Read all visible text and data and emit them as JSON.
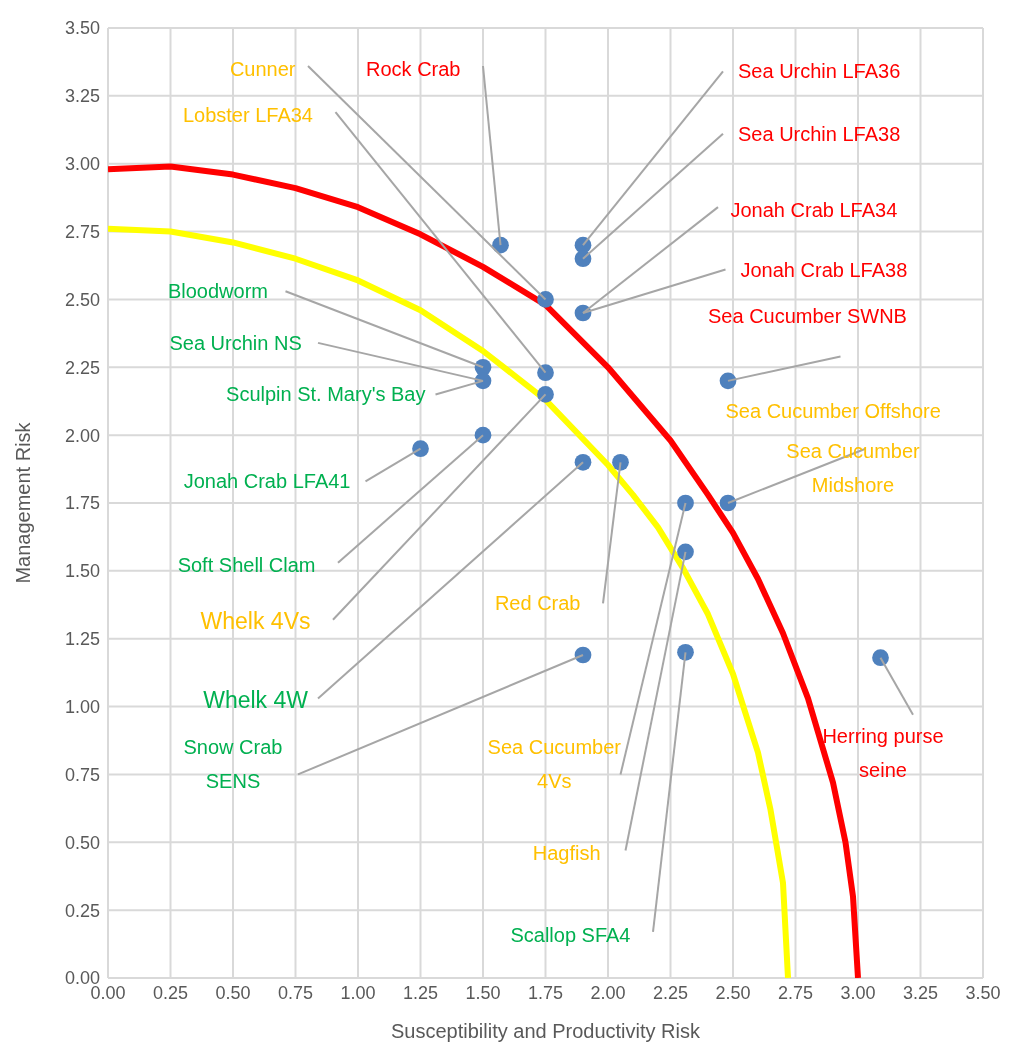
{
  "chart_data": {
    "type": "scatter",
    "xlabel": "Susceptibility and Productivity Risk",
    "ylabel": "Management  Risk",
    "xlim": [
      0,
      3.5
    ],
    "ylim": [
      0,
      3.5
    ],
    "grid": true,
    "xticks": [
      {
        "value": 0,
        "label": "0.00"
      },
      {
        "value": 0.25,
        "label": "0.25"
      },
      {
        "value": 0.5,
        "label": "0.50"
      },
      {
        "value": 0.75,
        "label": "0.75"
      },
      {
        "value": 1,
        "label": "1.00"
      },
      {
        "value": 1.25,
        "label": "1.25"
      },
      {
        "value": 1.5,
        "label": "1.50"
      },
      {
        "value": 1.75,
        "label": "1.75"
      },
      {
        "value": 2,
        "label": "2.00"
      },
      {
        "value": 2.25,
        "label": "2.25"
      },
      {
        "value": 2.5,
        "label": "2.50"
      },
      {
        "value": 2.75,
        "label": "2.75"
      },
      {
        "value": 3,
        "label": "3.00"
      },
      {
        "value": 3.25,
        "label": "3.25"
      },
      {
        "value": 3.5,
        "label": "3.50"
      }
    ],
    "yticks": [
      {
        "value": 0,
        "label": "0.00"
      },
      {
        "value": 0.25,
        "label": "0.25"
      },
      {
        "value": 0.5,
        "label": "0.50"
      },
      {
        "value": 0.75,
        "label": "0.75"
      },
      {
        "value": 1,
        "label": "1.00"
      },
      {
        "value": 1.25,
        "label": "1.25"
      },
      {
        "value": 1.5,
        "label": "1.50"
      },
      {
        "value": 1.75,
        "label": "1.75"
      },
      {
        "value": 2,
        "label": "2.00"
      },
      {
        "value": 2.25,
        "label": "2.25"
      },
      {
        "value": 2.5,
        "label": "2.50"
      },
      {
        "value": 2.75,
        "label": "2.75"
      },
      {
        "value": 3,
        "label": "3.00"
      },
      {
        "value": 3.25,
        "label": "3.25"
      },
      {
        "value": 3.5,
        "label": "3.50"
      }
    ],
    "series": [
      {
        "marker": "circle",
        "color": "#4f81bd",
        "x": [
          1.57,
          1.9,
          1.9,
          1.75,
          1.9,
          2.48,
          1.5,
          1.5,
          1.75,
          1.75,
          1.25,
          1.5,
          1.9,
          2.05,
          2.31,
          2.48,
          2.31,
          1.9,
          2.31,
          3.09
        ],
        "values": [
          2.7,
          2.7,
          2.65,
          2.5,
          2.45,
          2.2,
          2.25,
          2.2,
          2.23,
          2.15,
          1.95,
          2.0,
          1.9,
          1.9,
          1.75,
          1.75,
          1.57,
          1.19,
          1.2,
          1.18
        ]
      },
      {
        "type": "line",
        "marker": "none",
        "color": "#ff0000",
        "x": [
          0,
          0.25,
          0.5,
          0.75,
          1.0,
          1.25,
          1.5,
          1.75,
          2.0,
          2.25,
          2.4,
          2.5,
          2.6,
          2.7,
          2.8,
          2.9,
          2.95,
          2.98,
          3.0
        ],
        "values": [
          2.98,
          2.99,
          2.96,
          2.91,
          2.84,
          2.74,
          2.62,
          2.48,
          2.25,
          1.98,
          1.78,
          1.64,
          1.47,
          1.27,
          1.03,
          0.72,
          0.5,
          0.3,
          0
        ]
      },
      {
        "type": "line",
        "marker": "none",
        "color": "#ffff00",
        "x": [
          0,
          0.25,
          0.5,
          0.75,
          1.0,
          1.25,
          1.5,
          1.75,
          2.0,
          2.1,
          2.2,
          2.3,
          2.4,
          2.5,
          2.6,
          2.65,
          2.7,
          2.72
        ],
        "values": [
          2.76,
          2.75,
          2.71,
          2.65,
          2.57,
          2.46,
          2.31,
          2.13,
          1.89,
          1.78,
          1.66,
          1.51,
          1.34,
          1.12,
          0.83,
          0.62,
          0.35,
          0
        ]
      }
    ],
    "annotations": [
      {
        "text": "Rock Crab",
        "x": 1.57,
        "y": 2.7
      },
      {
        "text": "Sea Urchin LFA36",
        "x": 1.9,
        "y": 2.7
      },
      {
        "text": "Sea Urchin LFA38",
        "x": 1.9,
        "y": 2.65
      },
      {
        "text": "Cunner",
        "x": 1.75,
        "y": 2.5
      },
      {
        "text": "Jonah Crab LFA34",
        "x": 1.9,
        "y": 2.45
      },
      {
        "text": "Sea Cucumber SWNB",
        "x": 2.48,
        "y": 2.2
      },
      {
        "text": "Bloodworm",
        "x": 1.5,
        "y": 2.25
      },
      {
        "text": "Sea Urchin NS",
        "x": 1.5,
        "y": 2.2
      },
      {
        "text": "Lobster LFA34",
        "x": 1.75,
        "y": 2.23
      },
      {
        "text": "Whelk 4Vs",
        "x": 1.75,
        "y": 2.15
      },
      {
        "text": "Jonah Crab LFA41",
        "x": 1.25,
        "y": 1.95
      },
      {
        "text": "Soft Shell Clam",
        "x": 1.5,
        "y": 2.0
      },
      {
        "text": "Whelk 4W",
        "x": 1.9,
        "y": 1.9
      },
      {
        "text": "Red Crab",
        "x": 2.05,
        "y": 1.9
      },
      {
        "text": "Sea Cucumber 4Vs",
        "x": 2.31,
        "y": 1.75
      },
      {
        "text": "Sea Cucumber Midshore",
        "x": 2.48,
        "y": 1.75
      },
      {
        "text": "Hagfish",
        "x": 2.31,
        "y": 1.57
      },
      {
        "text": "Snow Crab SENS",
        "x": 1.9,
        "y": 1.19
      },
      {
        "text": "Scallop SFA4",
        "x": 2.31,
        "y": 1.2
      },
      {
        "text": "Herring purse seine",
        "x": 3.09,
        "y": 1.18
      },
      {
        "text": "Jonah Crab LFA38",
        "x": 1.9,
        "y": 2.45
      },
      {
        "text": "Sculpin St. Mary's Bay",
        "x": 1.5,
        "y": 2.2
      },
      "Sea Cucumber Offshore"
    ]
  }
}
